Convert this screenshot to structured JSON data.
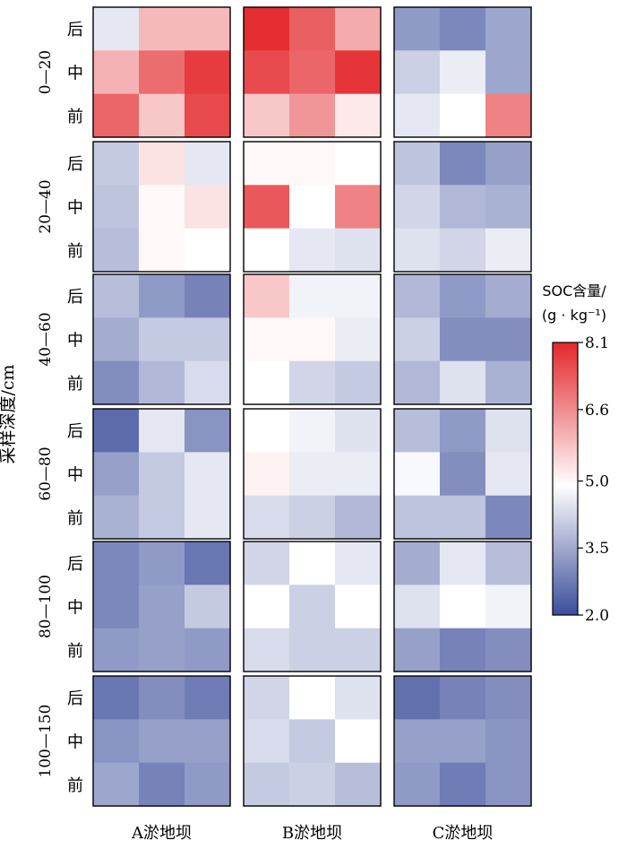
{
  "chart_data": {
    "type": "heatmap",
    "ylabel": "采样深度/cm",
    "column_groups": [
      "A淤地坝",
      "B淤地坝",
      "C淤地坝"
    ],
    "row_groups": [
      "0—20",
      "20—40",
      "40—60",
      "60—80",
      "80—100",
      "100—150"
    ],
    "positions": [
      "后",
      "中",
      "前"
    ],
    "colorbar": {
      "title_line1": "SOC含量/",
      "title_line2": "(g · kg⁻¹)",
      "min": 2.0,
      "max": 8.1,
      "mid": 5.0,
      "ticks": [
        "8.1",
        "6.6",
        "5.0",
        "3.5",
        "2.0"
      ],
      "tick_values": [
        8.1,
        6.6,
        5.0,
        3.5,
        2.0
      ],
      "colors": {
        "low": "#3b4d9a",
        "mid": "#ffffff",
        "high": "#e3272b"
      }
    },
    "values": [
      [
        [
          [
            4.6,
            6.0,
            6.0
          ],
          [
            6.1,
            7.1,
            7.8
          ],
          [
            7.2,
            5.8,
            7.6
          ]
        ],
        [
          [
            8.0,
            7.3,
            6.2
          ],
          [
            7.6,
            7.2,
            7.9
          ],
          [
            5.8,
            6.5,
            5.3
          ]
        ],
        [
          [
            3.3,
            3.0,
            3.5
          ],
          [
            4.2,
            4.7,
            3.5
          ],
          [
            4.6,
            5.0,
            6.8
          ]
        ]
      ],
      [
        [
          [
            4.1,
            5.4,
            4.6
          ],
          [
            4.0,
            5.1,
            5.4
          ],
          [
            3.9,
            5.1,
            5.0
          ]
        ],
        [
          [
            5.1,
            5.1,
            5.0
          ],
          [
            7.4,
            5.0,
            6.8
          ],
          [
            5.0,
            4.6,
            4.5
          ]
        ],
        [
          [
            4.0,
            3.0,
            3.4
          ],
          [
            4.3,
            3.8,
            3.7
          ],
          [
            4.5,
            4.3,
            4.7
          ]
        ]
      ],
      [
        [
          [
            3.9,
            3.3,
            2.9
          ],
          [
            3.6,
            4.1,
            4.1
          ],
          [
            3.1,
            3.8,
            4.4
          ]
        ],
        [
          [
            5.8,
            4.8,
            4.8
          ],
          [
            5.1,
            5.1,
            4.7
          ],
          [
            5.0,
            4.3,
            4.1
          ]
        ],
        [
          [
            3.8,
            3.3,
            3.6
          ],
          [
            4.2,
            3.1,
            3.1
          ],
          [
            3.8,
            4.5,
            3.7
          ]
        ]
      ],
      [
        [
          [
            2.5,
            4.6,
            3.2
          ],
          [
            3.4,
            4.1,
            4.6
          ],
          [
            3.7,
            4.1,
            4.6
          ]
        ],
        [
          [
            5.0,
            4.8,
            4.5
          ],
          [
            5.2,
            4.7,
            4.7
          ],
          [
            4.4,
            4.2,
            3.8
          ]
        ],
        [
          [
            3.9,
            3.3,
            4.5
          ],
          [
            4.9,
            3.1,
            4.6
          ],
          [
            4.0,
            4.0,
            3.0
          ]
        ]
      ],
      [
        [
          [
            3.0,
            3.3,
            2.7
          ],
          [
            3.0,
            3.4,
            4.1
          ],
          [
            3.3,
            3.4,
            3.3
          ]
        ],
        [
          [
            4.3,
            5.0,
            4.6
          ],
          [
            5.0,
            4.2,
            5.0
          ],
          [
            4.4,
            4.2,
            4.2
          ]
        ],
        [
          [
            3.6,
            4.6,
            3.9
          ],
          [
            4.5,
            5.0,
            4.8
          ],
          [
            3.4,
            2.9,
            3.1
          ]
        ]
      ],
      [
        [
          [
            2.7,
            3.1,
            2.8
          ],
          [
            3.2,
            3.4,
            3.4
          ],
          [
            3.5,
            2.9,
            3.3
          ]
        ],
        [
          [
            4.3,
            5.0,
            4.5
          ],
          [
            4.4,
            4.1,
            5.0
          ],
          [
            4.1,
            4.2,
            3.9
          ]
        ],
        [
          [
            2.6,
            2.9,
            3.1
          ],
          [
            3.4,
            3.4,
            3.2
          ],
          [
            3.3,
            2.8,
            3.2
          ]
        ]
      ]
    ]
  }
}
